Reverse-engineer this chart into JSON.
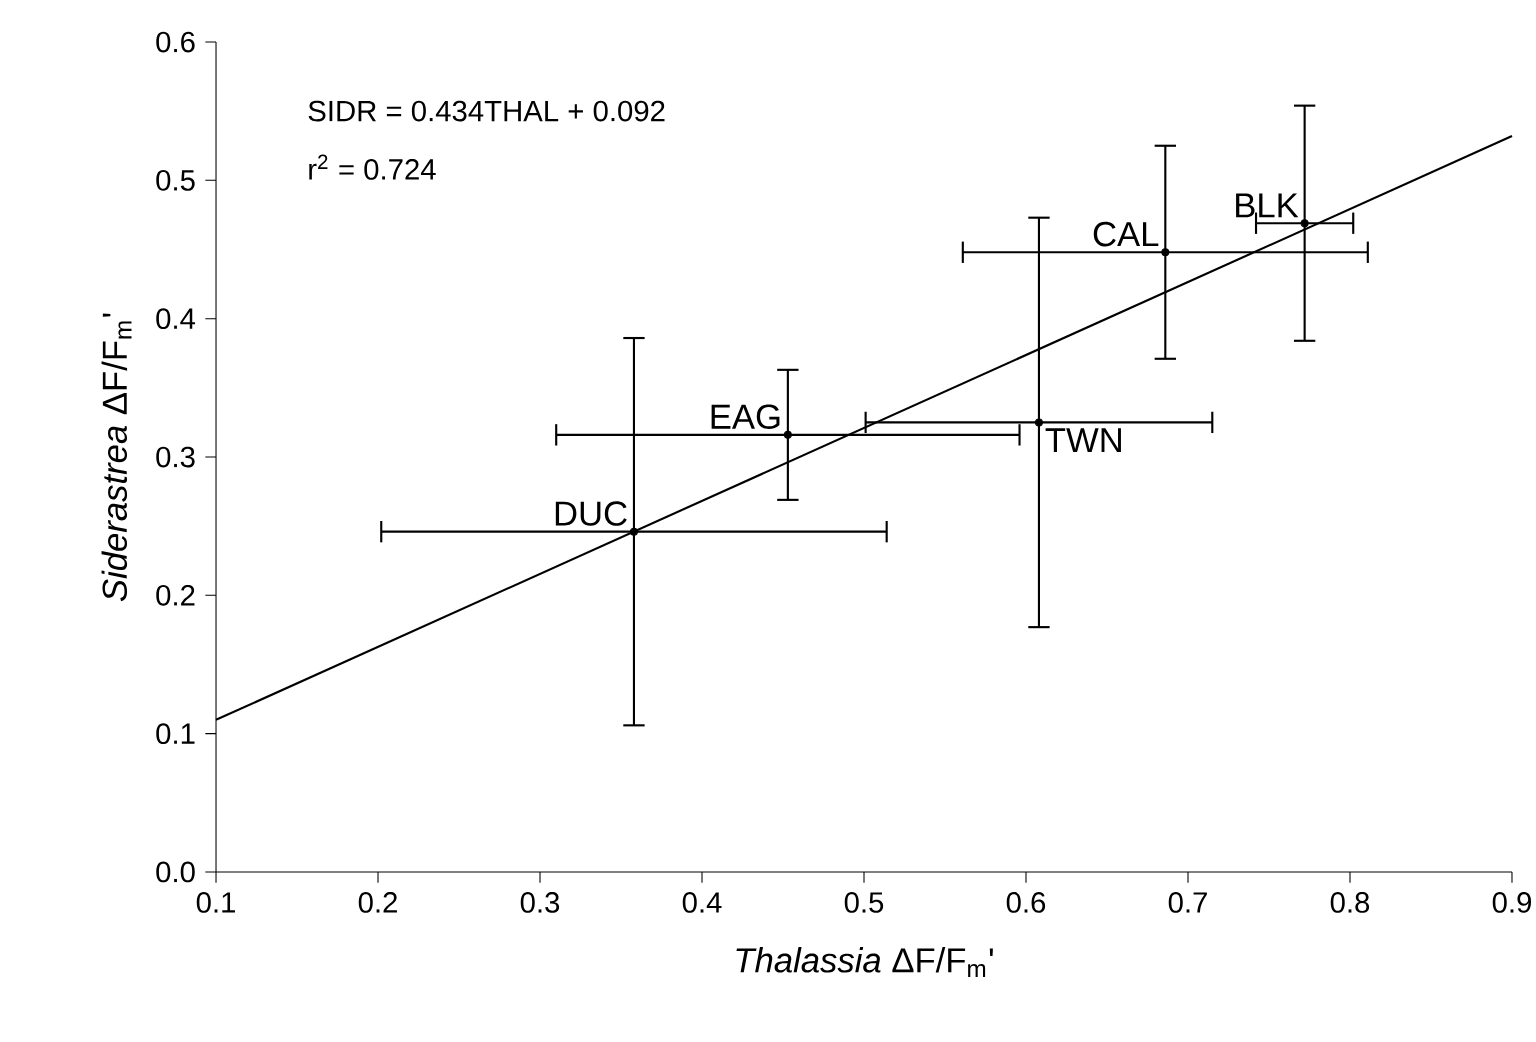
{
  "chart_data": {
    "type": "scatter",
    "xlabel": "*Thalassia* ΔF/F$_{m}$'",
    "ylabel": "*Siderastrea* ΔF/F$_{m}$'",
    "xlim": [
      0.1,
      0.9
    ],
    "ylim": [
      0,
      0.6
    ],
    "xticks": [
      0.1,
      0.2,
      0.3,
      0.4,
      0.5,
      0.6,
      0.7,
      0.8,
      0.9
    ],
    "yticks": [
      {
        "value": 0,
        "label": "0.0"
      },
      0.1,
      0.2,
      0.3,
      0.4,
      0.5,
      0.6
    ],
    "grid": false,
    "annotations": [
      "SIDR = 0.434THAL + 0.092",
      "r$^{2}$ = 0.724",
      {
        "text": "DUC",
        "x": 0.358,
        "y": 0.246
      },
      {
        "text": "EAG",
        "x": 0.453,
        "y": 0.316
      },
      {
        "text": "TWN",
        "x": 0.608,
        "y": 0.325
      },
      {
        "text": "CAL",
        "x": 0.686,
        "y": 0.448
      },
      {
        "text": "BLK",
        "x": 0.772,
        "y": 0.469
      }
    ],
    "series": [
      {
        "color": "#000000",
        "marker": "circle",
        "x": [
          0.358,
          0.453,
          0.608,
          0.686,
          0.772
        ],
        "values": [
          0.246,
          0.316,
          0.325,
          0.448,
          0.469
        ],
        "errors": [
          0.14,
          0.047,
          0.148,
          0.077,
          0.085
        ],
        "xerrors": [
          0.156,
          0.143,
          0.107,
          0.125,
          0.03
        ]
      },
      {
        "type": "line",
        "color": "#000000",
        "x": [
          0.1,
          0.9
        ],
        "values": [
          0.11,
          0.532
        ]
      }
    ]
  }
}
